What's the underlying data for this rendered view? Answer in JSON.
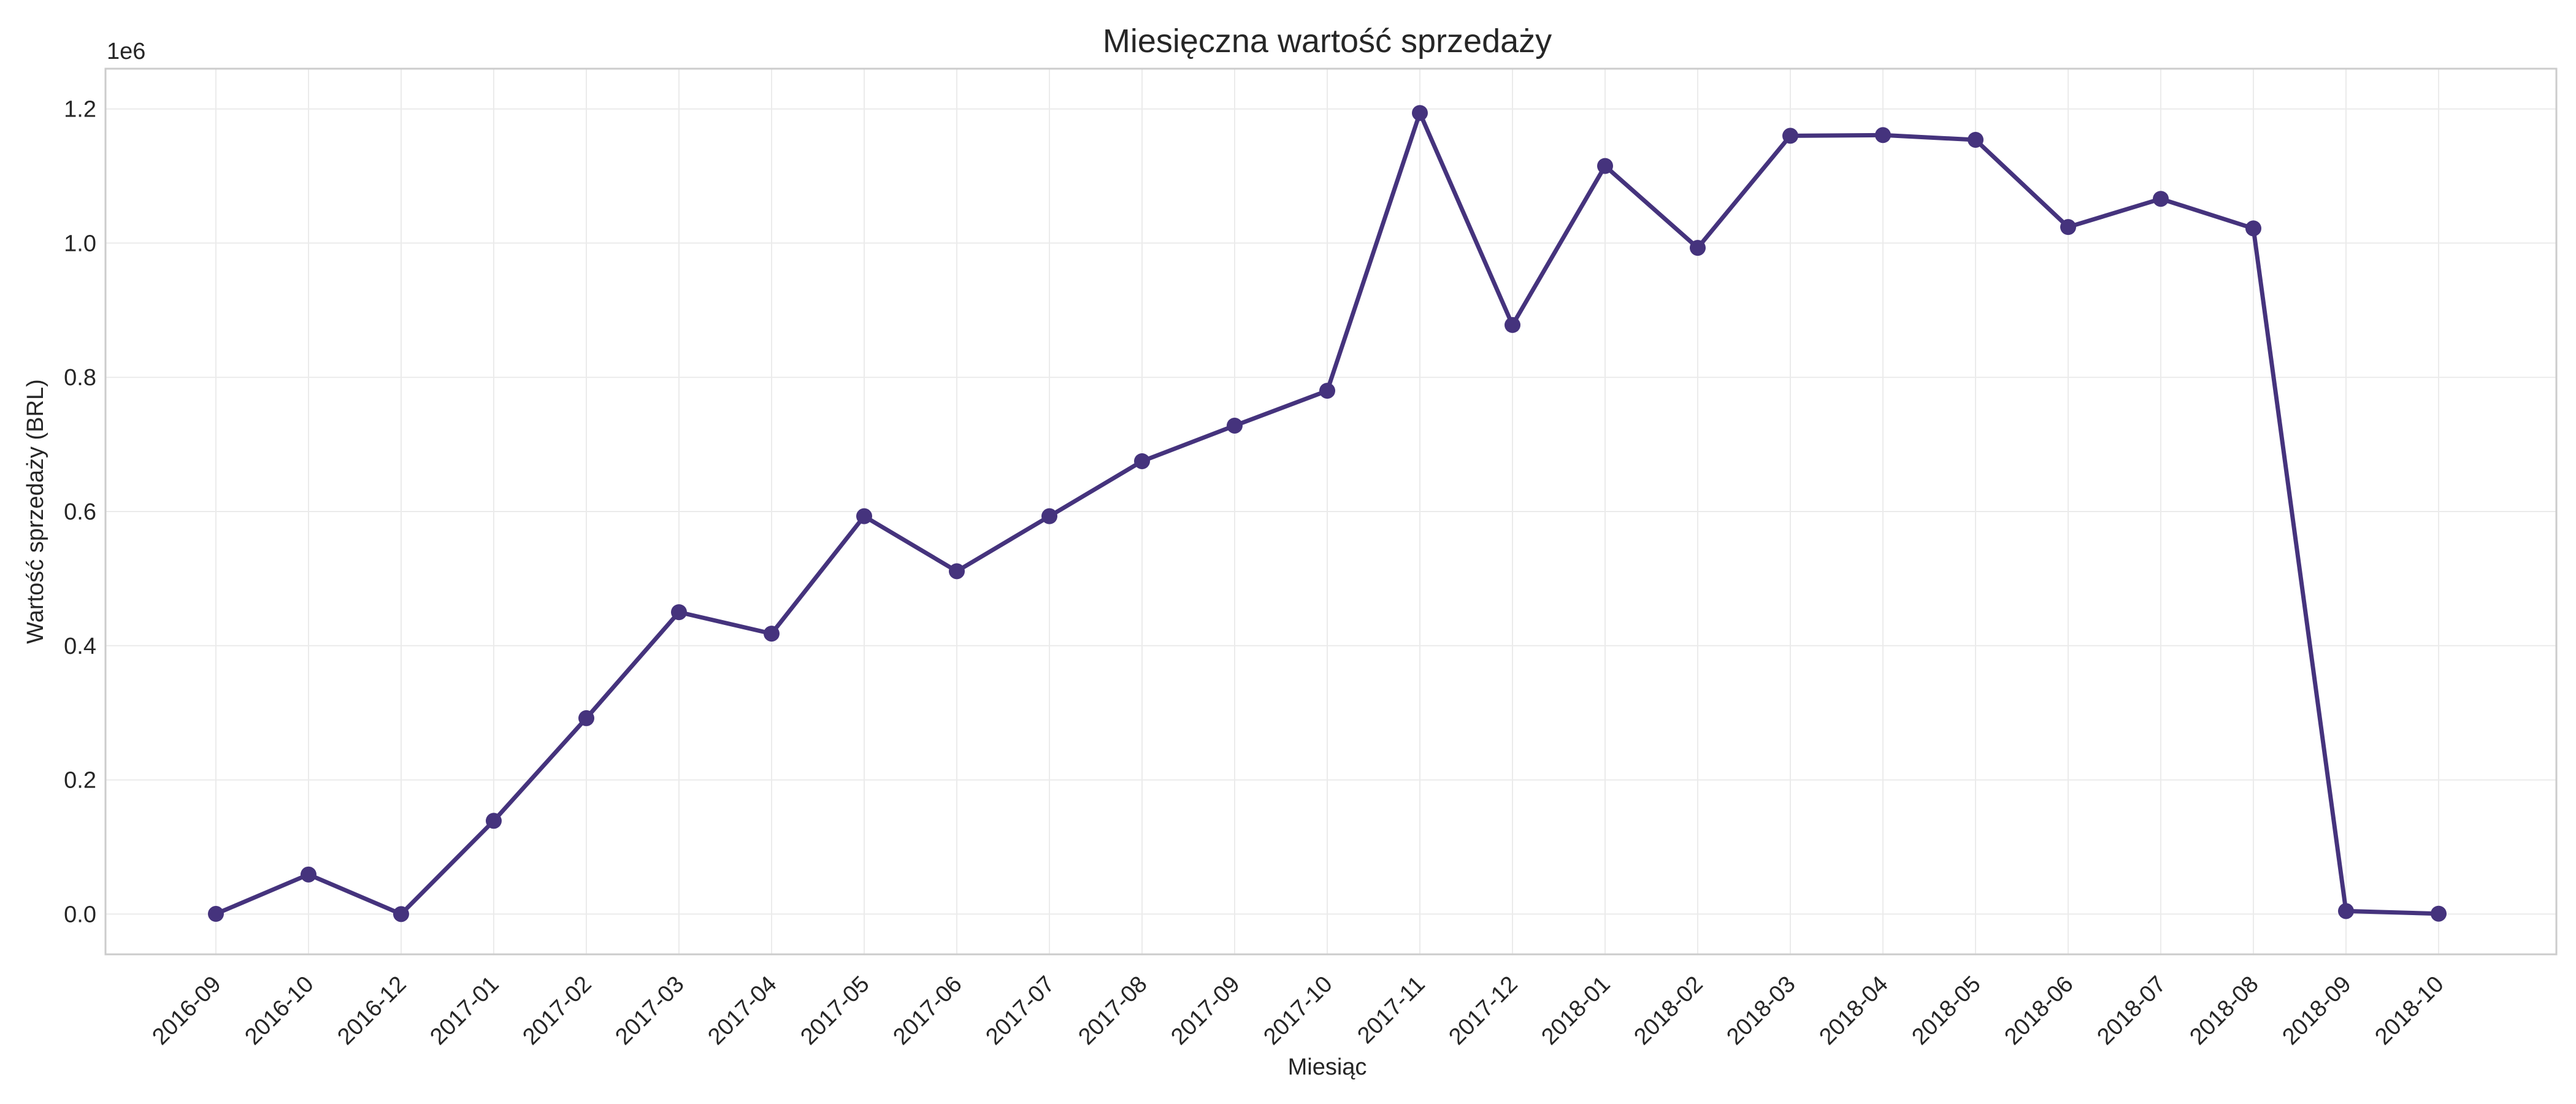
{
  "chart_data": {
    "type": "line",
    "title": "Miesięczna wartość sprzedaży",
    "xlabel": "Miesiąc",
    "ylabel": "Wartość sprzedaży (BRL)",
    "y_multiplier_label": "1e6",
    "ylim": [
      -0.06,
      1.26
    ],
    "yticks": [
      0.0,
      0.2,
      0.4,
      0.6,
      0.8,
      1.0,
      1.2
    ],
    "ytick_labels": [
      "0.0",
      "0.2",
      "0.4",
      "0.6",
      "0.8",
      "1.0",
      "1.2"
    ],
    "grid": true,
    "series": [
      {
        "name": "Wartość sprzedaży",
        "color": "#45337d",
        "x": [
          "2016-09",
          "2016-10",
          "2016-12",
          "2017-01",
          "2017-02",
          "2017-03",
          "2017-04",
          "2017-05",
          "2017-06",
          "2017-07",
          "2017-08",
          "2017-09",
          "2017-10",
          "2017-11",
          "2017-12",
          "2018-01",
          "2018-02",
          "2018-03",
          "2018-04",
          "2018-05",
          "2018-06",
          "2018-07",
          "2018-08",
          "2018-09",
          "2018-10"
        ],
        "values": [
          0.0003,
          0.059,
          2e-05,
          0.139,
          0.292,
          0.45,
          0.418,
          0.593,
          0.511,
          0.593,
          0.675,
          0.728,
          0.78,
          1.194,
          0.878,
          1.115,
          0.993,
          1.16,
          1.161,
          1.154,
          1.024,
          1.066,
          1.022,
          0.0045,
          0.0006
        ]
      }
    ]
  }
}
